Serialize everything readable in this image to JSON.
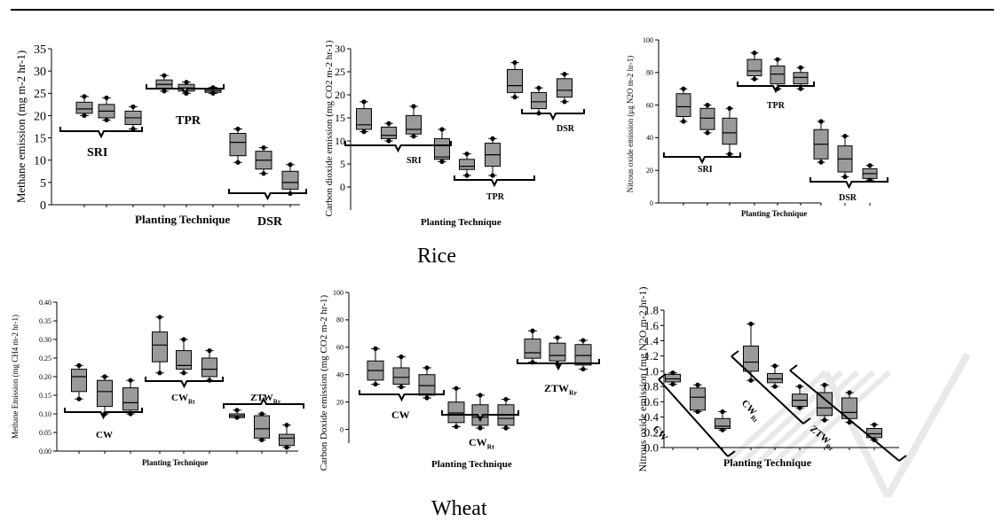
{
  "captions": {
    "rice": "Rice",
    "wheat": "Wheat"
  },
  "chart_data": [
    {
      "type": "box",
      "crop": "Rice",
      "ylabel": "Methane emission (mg m-2 hr-1)",
      "xlabel": "Planting Technique",
      "ylim": [
        0,
        35
      ],
      "yticks": [
        0,
        5,
        10,
        15,
        20,
        25,
        30,
        35
      ],
      "groups": [
        {
          "label": "SRI",
          "boxes": [
            {
              "min": 20,
              "q1": 20.5,
              "median": 21.5,
              "q3": 23,
              "max": 24.3
            },
            {
              "min": 19,
              "q1": 19.5,
              "median": 21,
              "q3": 22.5,
              "max": 24
            },
            {
              "min": 17,
              "q1": 18,
              "median": 19.5,
              "q3": 21,
              "max": 22
            }
          ]
        },
        {
          "label": "TPR",
          "boxes": [
            {
              "min": 25.5,
              "q1": 26,
              "median": 27,
              "q3": 28,
              "max": 29
            },
            {
              "min": 25,
              "q1": 25.5,
              "median": 26.2,
              "q3": 27,
              "max": 27.5
            },
            {
              "min": 25,
              "q1": 25.2,
              "median": 25.6,
              "q3": 26,
              "max": 26.3
            }
          ]
        },
        {
          "label": "DSR",
          "boxes": [
            {
              "min": 9.5,
              "q1": 11,
              "median": 14,
              "q3": 16,
              "max": 17
            },
            {
              "min": 7,
              "q1": 8,
              "median": 10,
              "q3": 12,
              "max": 12.8
            },
            {
              "min": 2.5,
              "q1": 3.5,
              "median": 5,
              "q3": 7.5,
              "max": 9
            }
          ]
        }
      ]
    },
    {
      "type": "box",
      "crop": "Rice",
      "ylabel": "Carbon dioxide emission (mg CO2 m-2 hr-1)",
      "xlabel": "Planting Technique",
      "ylim": [
        -5,
        30
      ],
      "yticks": [
        0,
        5,
        10,
        15,
        20,
        25,
        30
      ],
      "groups": [
        {
          "label": "SRI",
          "boxes": [
            {
              "min": 12,
              "q1": 12.5,
              "median": 13.5,
              "q3": 17,
              "max": 18.5
            },
            {
              "min": 10,
              "q1": 10.5,
              "median": 11.2,
              "q3": 13,
              "max": 13.8
            },
            {
              "min": 11,
              "q1": 11.5,
              "median": 12.5,
              "q3": 15.5,
              "max": 17.5
            }
          ]
        },
        {
          "label": "TPR",
          "boxes": [
            {
              "min": 5.5,
              "q1": 6,
              "median": 6.5,
              "q3": 10.5,
              "max": 12.5
            },
            {
              "min": 2.5,
              "q1": 3.8,
              "median": 4.5,
              "q3": 6,
              "max": 7.2
            },
            {
              "min": 2.5,
              "q1": 4.5,
              "median": 7,
              "q3": 9.5,
              "max": 10.5
            }
          ]
        },
        {
          "label": "DSR",
          "boxes": [
            {
              "min": 19.5,
              "q1": 20.5,
              "median": 22,
              "q3": 25.5,
              "max": 27
            },
            {
              "min": 16,
              "q1": 17,
              "median": 18.5,
              "q3": 20.5,
              "max": 21.5
            },
            {
              "min": 18.5,
              "q1": 19.5,
              "median": 21,
              "q3": 23.5,
              "max": 24.5
            }
          ]
        }
      ]
    },
    {
      "type": "box",
      "crop": "Rice",
      "ylabel": "Nitrous oxide emission (μg N2O m-2 hr-1)",
      "xlabel": "Planting Technique",
      "ylim": [
        0,
        100
      ],
      "yticks": [
        0,
        20,
        40,
        60,
        80,
        100
      ],
      "groups": [
        {
          "label": "SRI",
          "boxes": [
            {
              "min": 50,
              "q1": 53,
              "median": 59,
              "q3": 67,
              "max": 70
            },
            {
              "min": 43,
              "q1": 45,
              "median": 52,
              "q3": 58,
              "max": 60
            },
            {
              "min": 30,
              "q1": 36,
              "median": 43,
              "q3": 52,
              "max": 58
            }
          ]
        },
        {
          "label": "TPR",
          "boxes": [
            {
              "min": 76,
              "q1": 78,
              "median": 81,
              "q3": 88,
              "max": 92
            },
            {
              "min": 70,
              "q1": 73,
              "median": 79,
              "q3": 84,
              "max": 88
            },
            {
              "min": 70,
              "q1": 73,
              "median": 77,
              "q3": 80,
              "max": 83
            }
          ]
        },
        {
          "label": "DSR",
          "boxes": [
            {
              "min": 25,
              "q1": 27,
              "median": 36,
              "q3": 45,
              "max": 50
            },
            {
              "min": 16,
              "q1": 19,
              "median": 27,
              "q3": 35,
              "max": 41
            },
            {
              "min": 14,
              "q1": 15,
              "median": 18,
              "q3": 21,
              "max": 23
            }
          ]
        }
      ]
    },
    {
      "type": "box",
      "crop": "Wheat",
      "ylabel": "Methane Emission (mg CH4 m-2 hr-1)",
      "xlabel": "Planting Technique",
      "ylim": [
        0,
        0.4
      ],
      "yticks": [
        0.0,
        0.05,
        0.1,
        0.15,
        0.2,
        0.25,
        0.3,
        0.35,
        0.4
      ],
      "groups": [
        {
          "label": "CW",
          "boxes": [
            {
              "min": 0.14,
              "q1": 0.16,
              "median": 0.2,
              "q3": 0.22,
              "max": 0.23
            },
            {
              "min": 0.1,
              "q1": 0.12,
              "median": 0.16,
              "q3": 0.19,
              "max": 0.2
            },
            {
              "min": 0.1,
              "q1": 0.11,
              "median": 0.13,
              "q3": 0.17,
              "max": 0.19
            }
          ]
        },
        {
          "label": "CWRt",
          "boxes": [
            {
              "min": 0.21,
              "q1": 0.24,
              "median": 0.285,
              "q3": 0.32,
              "max": 0.36
            },
            {
              "min": 0.21,
              "q1": 0.22,
              "median": 0.23,
              "q3": 0.27,
              "max": 0.3
            },
            {
              "min": 0.19,
              "q1": 0.2,
              "median": 0.22,
              "q3": 0.25,
              "max": 0.27
            }
          ]
        },
        {
          "label": "ZTWRr",
          "boxes": [
            {
              "min": 0.09,
              "q1": 0.09,
              "median": 0.095,
              "q3": 0.1,
              "max": 0.11
            },
            {
              "min": 0.03,
              "q1": 0.035,
              "median": 0.06,
              "q3": 0.095,
              "max": 0.1
            },
            {
              "min": 0.01,
              "q1": 0.015,
              "median": 0.035,
              "q3": 0.045,
              "max": 0.07
            }
          ]
        }
      ]
    },
    {
      "type": "box",
      "crop": "Wheat",
      "ylabel": "Carbon Doxide emission (mg CO2 m-2 hr-1)",
      "xlabel": "Planting Technique",
      "ylim": [
        -10,
        100
      ],
      "yticks": [
        0,
        20,
        40,
        60,
        80,
        100
      ],
      "groups": [
        {
          "label": "CW",
          "boxes": [
            {
              "min": 33,
              "q1": 36,
              "median": 43,
              "q3": 50,
              "max": 59
            },
            {
              "min": 31,
              "q1": 33,
              "median": 38,
              "q3": 45,
              "max": 53
            },
            {
              "min": 23,
              "q1": 25,
              "median": 32,
              "q3": 40,
              "max": 45
            }
          ]
        },
        {
          "label": "CWRt",
          "boxes": [
            {
              "min": 2,
              "q1": 5,
              "median": 12,
              "q3": 20,
              "max": 30
            },
            {
              "min": 1,
              "q1": 3,
              "median": 9,
              "q3": 18,
              "max": 25
            },
            {
              "min": 1,
              "q1": 3,
              "median": 8,
              "q3": 18,
              "max": 22
            }
          ]
        },
        {
          "label": "ZTWRr",
          "boxes": [
            {
              "min": 49,
              "q1": 52,
              "median": 56,
              "q3": 66,
              "max": 72
            },
            {
              "min": 48,
              "q1": 50,
              "median": 54,
              "q3": 63,
              "max": 67
            },
            {
              "min": 44,
              "q1": 47,
              "median": 54,
              "q3": 62,
              "max": 65
            }
          ]
        }
      ]
    },
    {
      "type": "box",
      "crop": "Wheat",
      "ylabel": "Nitrous oxide emission (mg N2O m-2 hr-1)",
      "xlabel": "Planting Technique",
      "ylim": [
        0,
        1.8
      ],
      "yticks": [
        0.0,
        0.2,
        0.4,
        0.6,
        0.8,
        1.0,
        1.2,
        1.4,
        1.6,
        1.8
      ],
      "groups": [
        {
          "label": "CW",
          "boxes": [
            {
              "min": 0.83,
              "q1": 0.86,
              "median": 0.9,
              "q3": 0.96,
              "max": 0.98
            },
            {
              "min": 0.47,
              "q1": 0.49,
              "median": 0.66,
              "q3": 0.78,
              "max": 0.82
            },
            {
              "min": 0.23,
              "q1": 0.25,
              "median": 0.28,
              "q3": 0.38,
              "max": 0.47
            }
          ]
        },
        {
          "label": "CWRt",
          "boxes": [
            {
              "min": 0.88,
              "q1": 1.0,
              "median": 1.12,
              "q3": 1.33,
              "max": 1.62
            },
            {
              "min": 0.8,
              "q1": 0.85,
              "median": 0.9,
              "q3": 0.97,
              "max": 1.07
            },
            {
              "min": 0.52,
              "q1": 0.54,
              "median": 0.62,
              "q3": 0.7,
              "max": 0.8
            }
          ]
        },
        {
          "label": "ZTWRr",
          "boxes": [
            {
              "min": 0.36,
              "q1": 0.42,
              "median": 0.52,
              "q3": 0.72,
              "max": 0.82
            },
            {
              "min": 0.33,
              "q1": 0.38,
              "median": 0.46,
              "q3": 0.65,
              "max": 0.72
            },
            {
              "min": 0.1,
              "q1": 0.13,
              "median": 0.18,
              "q3": 0.25,
              "max": 0.3
            }
          ]
        }
      ]
    }
  ]
}
